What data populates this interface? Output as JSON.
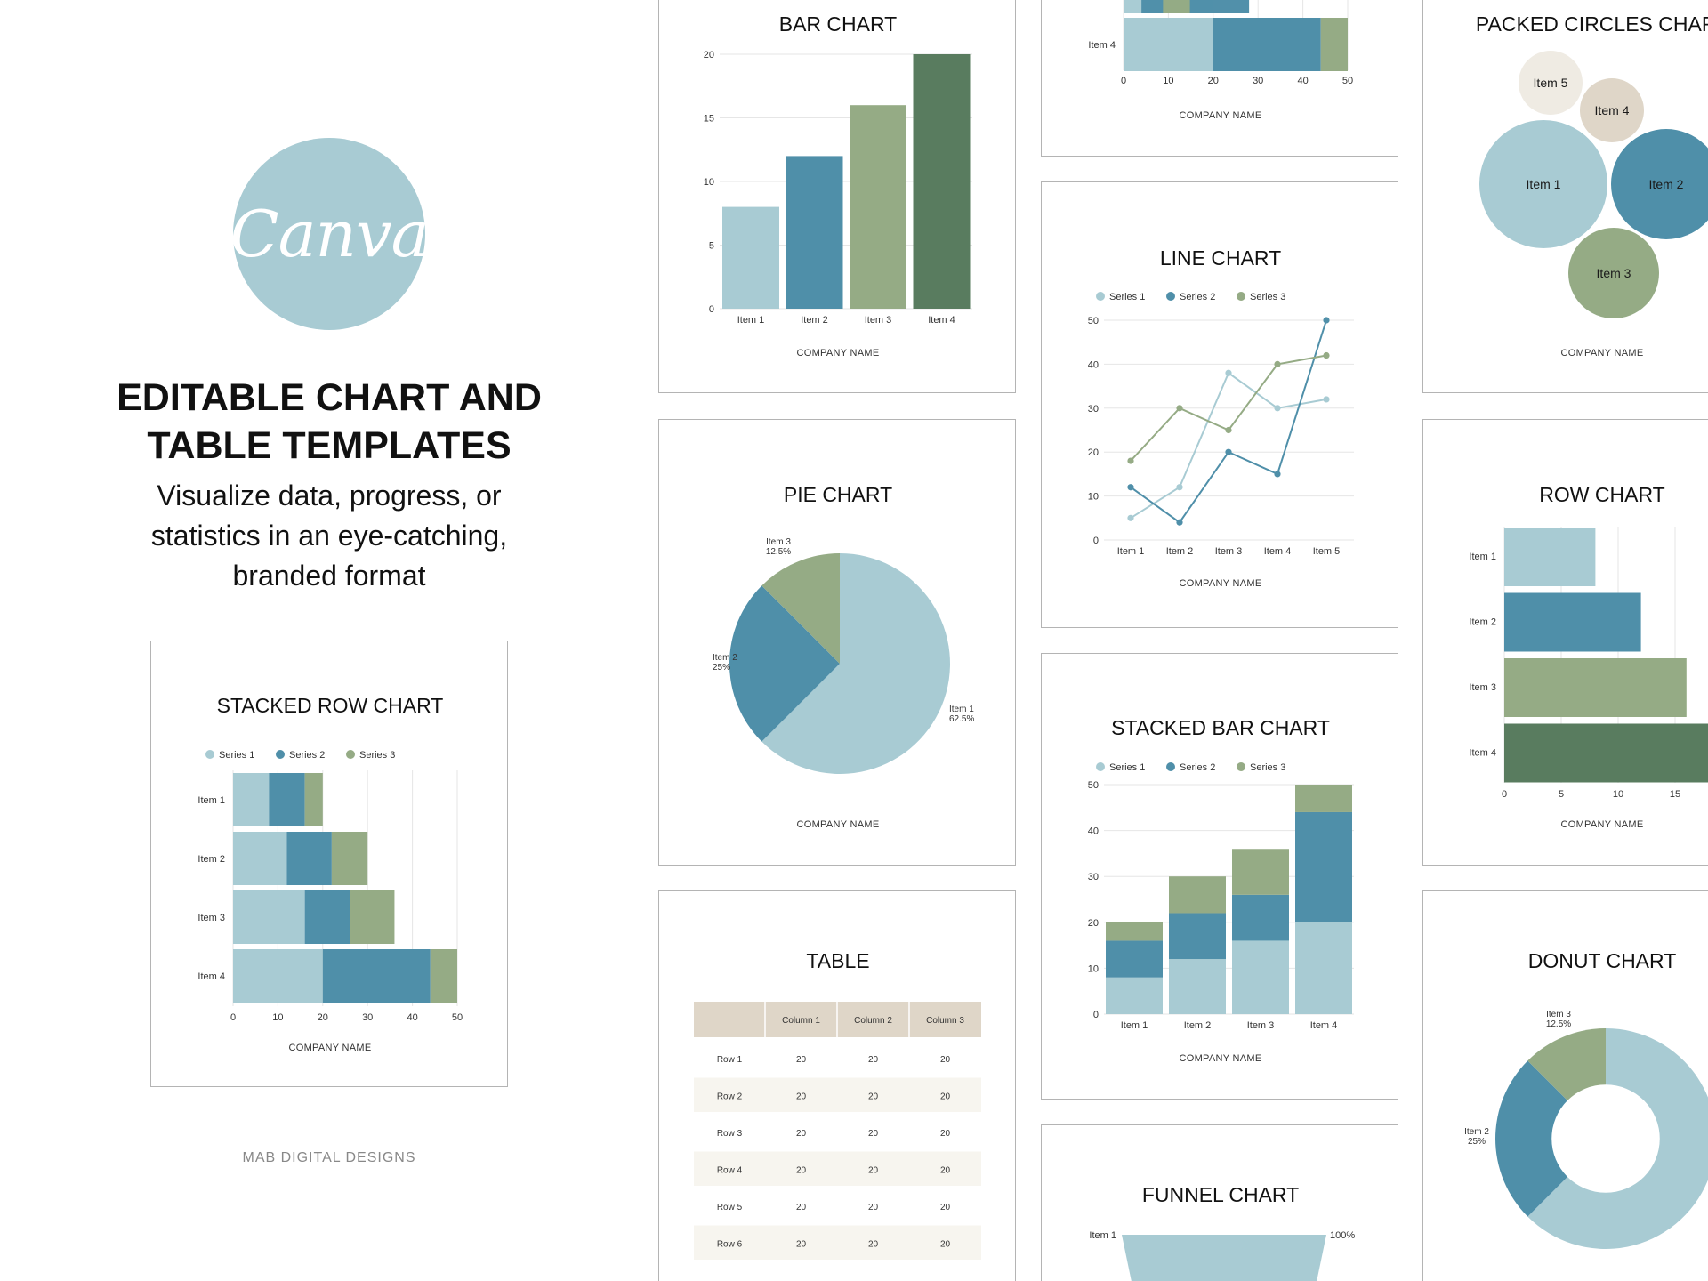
{
  "hero": {
    "logo_text": "Canva",
    "headline_1": "EDITABLE CHART AND",
    "headline_2": "TABLE TEMPLATES",
    "sub_1": "Visualize data, progress, or",
    "sub_2": "statistics in an eye-catching,",
    "sub_3": "branded format",
    "brand": "MAB DIGITAL DESIGNS"
  },
  "colors": {
    "s1": "#a8cbd3",
    "s2": "#4f8fa9",
    "s3": "#95ab85",
    "s4": "#597c5f",
    "beige": "#dfd6c8",
    "cream": "#efebe3",
    "grid": "#e6e6e6",
    "axis": "#999999"
  },
  "company_name": "COMPANY NAME",
  "chart_data": [
    {
      "id": "stacked-row",
      "type": "bar",
      "orientation": "horizontal",
      "stacked": true,
      "title": "STACKED ROW CHART",
      "categories": [
        "Item 1",
        "Item 2",
        "Item 3",
        "Item 4"
      ],
      "series": [
        {
          "name": "Series 1",
          "values": [
            8,
            12,
            16,
            20
          ],
          "color": "#a8cbd3"
        },
        {
          "name": "Series 2",
          "values": [
            8,
            10,
            10,
            24
          ],
          "color": "#4f8fa9"
        },
        {
          "name": "Series 3",
          "values": [
            4,
            8,
            10,
            6
          ],
          "color": "#95ab85"
        }
      ],
      "xticks": [
        0,
        10,
        20,
        30,
        40,
        50
      ],
      "xlim": [
        0,
        50
      ],
      "legend": "top",
      "grid": true
    },
    {
      "id": "bar",
      "type": "bar",
      "title": "BAR CHART",
      "categories": [
        "Item 1",
        "Item 2",
        "Item 3",
        "Item 4"
      ],
      "values": [
        8,
        12,
        16,
        20
      ],
      "colors": [
        "#a8cbd3",
        "#4f8fa9",
        "#95ab85",
        "#597c5f"
      ],
      "yticks": [
        0,
        5,
        10,
        15,
        20
      ],
      "ylim": [
        0,
        20
      ],
      "grid": true
    },
    {
      "id": "pie",
      "type": "pie",
      "title": "PIE CHART",
      "slices": [
        {
          "label": "Item 1",
          "pct_label": "62.5%",
          "value": 62.5,
          "color": "#a8cbd3"
        },
        {
          "label": "Item 2",
          "pct_label": "25%",
          "value": 25,
          "color": "#4f8fa9"
        },
        {
          "label": "Item 3",
          "pct_label": "12.5%",
          "value": 12.5,
          "color": "#95ab85"
        }
      ]
    },
    {
      "id": "table",
      "type": "table",
      "title": "TABLE",
      "columns": [
        "",
        "Column 1",
        "Column 2",
        "Column 3"
      ],
      "rows": [
        [
          "Row 1",
          "20",
          "20",
          "20"
        ],
        [
          "Row 2",
          "20",
          "20",
          "20"
        ],
        [
          "Row 3",
          "20",
          "20",
          "20"
        ],
        [
          "Row 4",
          "20",
          "20",
          "20"
        ],
        [
          "Row 5",
          "20",
          "20",
          "20"
        ],
        [
          "Row 6",
          "20",
          "20",
          "20"
        ]
      ]
    },
    {
      "id": "stacked-row-top",
      "type": "bar",
      "orientation": "horizontal",
      "stacked": true,
      "title": "",
      "categories": [
        "Item 4"
      ],
      "series": [
        {
          "name": "Series 1",
          "values": [
            20
          ],
          "color": "#a8cbd3"
        },
        {
          "name": "Series 2",
          "values": [
            24
          ],
          "color": "#4f8fa9"
        },
        {
          "name": "Series 3",
          "values": [
            6
          ],
          "color": "#95ab85"
        }
      ],
      "xticks": [
        0,
        10,
        20,
        30,
        40,
        50
      ],
      "xlim": [
        0,
        50
      ]
    },
    {
      "id": "line",
      "type": "line",
      "title": "LINE CHART",
      "categories": [
        "Item 1",
        "Item 2",
        "Item 3",
        "Item 4",
        "Item 5"
      ],
      "series": [
        {
          "name": "Series 1",
          "values": [
            5,
            12,
            38,
            30,
            32
          ],
          "color": "#a8cbd3"
        },
        {
          "name": "Series 2",
          "values": [
            12,
            4,
            20,
            15,
            50
          ],
          "color": "#4f8fa9"
        },
        {
          "name": "Series 3",
          "values": [
            18,
            30,
            25,
            40,
            42
          ],
          "color": "#95ab85"
        }
      ],
      "yticks": [
        0,
        10,
        20,
        30,
        40,
        50
      ],
      "ylim": [
        0,
        50
      ],
      "legend": "top",
      "grid": true
    },
    {
      "id": "stacked-bar",
      "type": "bar",
      "stacked": true,
      "title": "STACKED BAR CHART",
      "categories": [
        "Item 1",
        "Item 2",
        "Item 3",
        "Item 4"
      ],
      "series": [
        {
          "name": "Series 1",
          "values": [
            8,
            12,
            16,
            20
          ],
          "color": "#a8cbd3"
        },
        {
          "name": "Series 2",
          "values": [
            8,
            10,
            10,
            24
          ],
          "color": "#4f8fa9"
        },
        {
          "name": "Series 3",
          "values": [
            4,
            8,
            10,
            6
          ],
          "color": "#95ab85"
        }
      ],
      "yticks": [
        0,
        10,
        20,
        30,
        40,
        50
      ],
      "ylim": [
        0,
        50
      ],
      "legend": "top",
      "grid": true
    },
    {
      "id": "funnel",
      "type": "bar",
      "title": "FUNNEL CHART",
      "categories": [
        "Item 1"
      ],
      "values": [
        100
      ],
      "value_labels": [
        "100%"
      ]
    },
    {
      "id": "packed",
      "type": "scatter",
      "title": "PACKED CIRCLES CHART",
      "items": [
        {
          "label": "Item 1",
          "value": 100,
          "color": "#a8cbd3"
        },
        {
          "label": "Item 2",
          "value": 75,
          "color": "#4f8fa9"
        },
        {
          "label": "Item 3",
          "value": 50,
          "color": "#95ab85"
        },
        {
          "label": "Item 4",
          "value": 25,
          "color": "#dfd6c8"
        },
        {
          "label": "Item 5",
          "value": 25,
          "color": "#efebe3"
        }
      ]
    },
    {
      "id": "row",
      "type": "bar",
      "orientation": "horizontal",
      "title": "ROW CHART",
      "categories": [
        "Item 1",
        "Item 2",
        "Item 3",
        "Item 4"
      ],
      "values": [
        8,
        12,
        16,
        20
      ],
      "colors": [
        "#a8cbd3",
        "#4f8fa9",
        "#95ab85",
        "#597c5f"
      ],
      "xticks": [
        0,
        5,
        10,
        15
      ],
      "xlim": [
        0,
        20
      ],
      "grid": true
    },
    {
      "id": "donut",
      "type": "pie",
      "hole": true,
      "title": "DONUT CHART",
      "slices": [
        {
          "label": "Item 1",
          "pct_label": "62.5%",
          "value": 62.5,
          "color": "#a8cbd3"
        },
        {
          "label": "Item 2",
          "pct_label": "25%",
          "value": 25,
          "color": "#4f8fa9"
        },
        {
          "label": "Item 3",
          "pct_label": "12.5%",
          "value": 12.5,
          "color": "#95ab85"
        }
      ]
    }
  ]
}
